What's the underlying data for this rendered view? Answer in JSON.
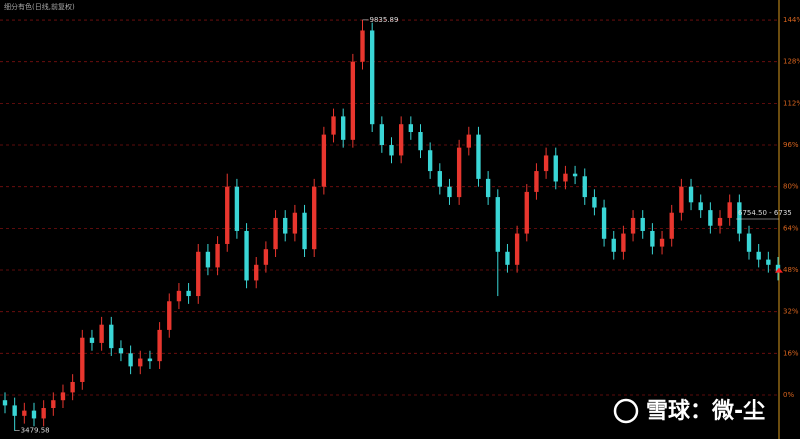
{
  "chart_data": {
    "type": "candlestick",
    "title": "细分有色(日线,前复权)",
    "open": [
      -2,
      -4,
      -8,
      -6,
      -9,
      -5,
      -2,
      1,
      5,
      22,
      20,
      27,
      18,
      16,
      11,
      14,
      13,
      25,
      36,
      40,
      38,
      55,
      49,
      58,
      80,
      63,
      44,
      50,
      56,
      68,
      62,
      70,
      56,
      80,
      100,
      107,
      98,
      128,
      140,
      104,
      96,
      92,
      104,
      101,
      94,
      86,
      80,
      76,
      95,
      100,
      83,
      76,
      55,
      50,
      62,
      78,
      86,
      92,
      82,
      85,
      84,
      76,
      72,
      60,
      55,
      62,
      68,
      63,
      57,
      60,
      70,
      80,
      74,
      71,
      65,
      68,
      74,
      62,
      55,
      52,
      50
    ],
    "high": [
      1,
      -1,
      -3,
      -3,
      -2,
      1,
      4,
      8,
      25,
      25,
      30,
      30,
      21,
      19,
      17,
      17,
      28,
      39,
      43,
      43,
      58,
      58,
      61,
      85,
      83,
      66,
      53,
      59,
      71,
      71,
      73,
      73,
      83,
      103,
      110,
      110,
      131,
      144.06,
      143,
      107,
      99,
      107,
      107,
      104,
      97,
      89,
      83,
      98,
      103,
      103,
      86,
      79,
      58,
      65,
      81,
      89,
      95,
      95,
      88,
      88,
      87,
      79,
      75,
      63,
      65,
      71,
      71,
      66,
      63,
      73,
      83,
      83,
      77,
      74,
      71,
      77,
      77,
      65,
      58,
      55,
      53
    ],
    "low": [
      -7,
      -13.7,
      -11,
      -12,
      -12,
      -8,
      -5,
      -2,
      2,
      17,
      17,
      15,
      13,
      8,
      8,
      10,
      10,
      22,
      33,
      35,
      35,
      46,
      46,
      55,
      60,
      41,
      41,
      47,
      53,
      59,
      59,
      53,
      53,
      77,
      97,
      95,
      95,
      125,
      101,
      93,
      89,
      89,
      98,
      91,
      83,
      77,
      73,
      73,
      92,
      80,
      73,
      38,
      47,
      47,
      59,
      75,
      83,
      79,
      79,
      81,
      73,
      69,
      57,
      52,
      52,
      59,
      60,
      54,
      54,
      57,
      67,
      71,
      68,
      62,
      62,
      65,
      59,
      52,
      49,
      47,
      44
    ],
    "close": [
      -4,
      -8,
      -6,
      -9,
      -5,
      -2,
      1,
      5,
      22,
      20,
      27,
      18,
      16,
      11,
      14,
      13,
      25,
      36,
      40,
      38,
      55,
      49,
      58,
      80,
      63,
      44,
      50,
      56,
      68,
      62,
      70,
      56,
      80,
      100,
      107,
      98,
      128,
      140,
      104,
      96,
      92,
      104,
      101,
      94,
      86,
      80,
      76,
      95,
      100,
      83,
      76,
      55,
      50,
      62,
      78,
      86,
      92,
      82,
      85,
      84,
      76,
      72,
      60,
      55,
      62,
      68,
      63,
      57,
      60,
      70,
      80,
      74,
      71,
      65,
      68,
      74,
      62,
      55,
      52,
      50,
      47
    ],
    "up_color": "#e8362e",
    "down_color": "#3ad6d6",
    "ylim": [
      -16.9,
      151.7
    ],
    "yticks": [
      {
        "value": 0,
        "label": "0%"
      },
      {
        "value": 16,
        "label": "16%"
      },
      {
        "value": 32,
        "label": "32%"
      },
      {
        "value": 48,
        "label": "48%"
      },
      {
        "value": 64,
        "label": "64%"
      },
      {
        "value": 80,
        "label": "80%"
      },
      {
        "value": 96,
        "label": "96%"
      },
      {
        "value": 112,
        "label": "112%"
      },
      {
        "value": 128,
        "label": "128%"
      },
      {
        "value": 144,
        "label": "144%"
      }
    ],
    "grid": true,
    "annotations": {
      "high": "9835.89",
      "low": "3479.58",
      "last": "6754.50 - 6735"
    },
    "watermark": "雪球：微-尘"
  }
}
